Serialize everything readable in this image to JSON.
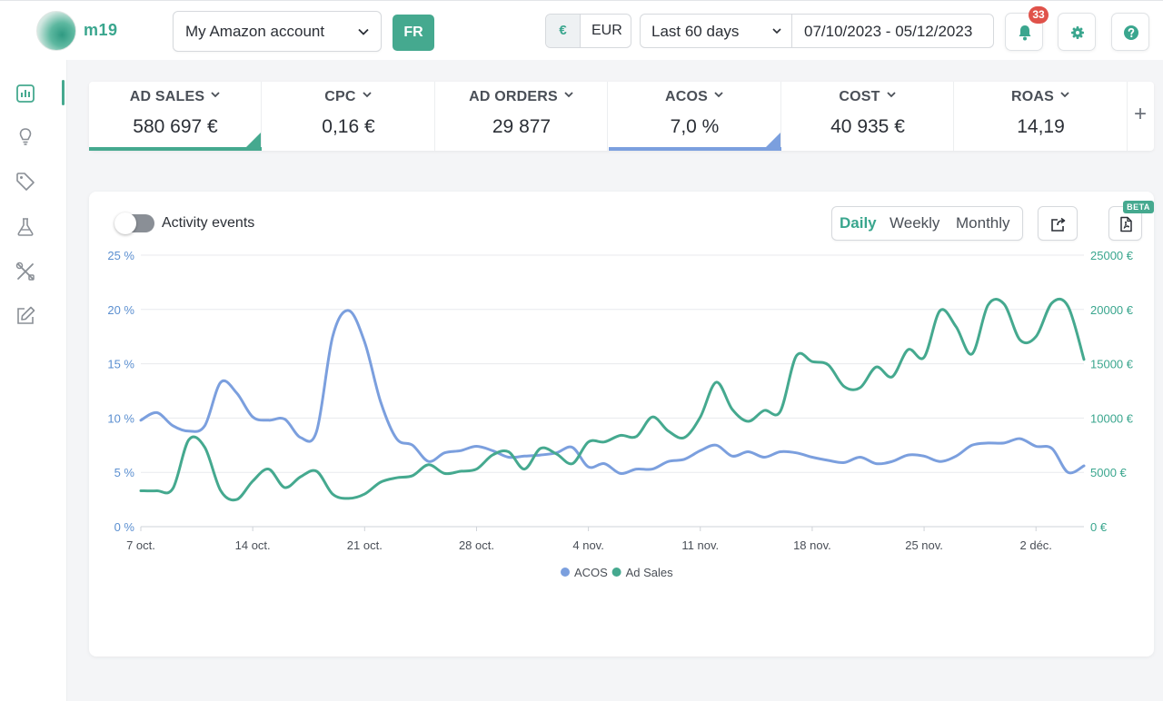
{
  "header": {
    "brand": "m19",
    "account": "My Amazon account",
    "marketplace": "FR",
    "currency_symbol": "€",
    "currency_code": "EUR",
    "period": "Last 60 days",
    "date_range": "07/10/2023 - 05/12/2023",
    "notifications_count": "33",
    "icons": [
      "bell-icon",
      "gear-icon",
      "help-icon"
    ]
  },
  "sidebar": {
    "items": [
      {
        "name": "dashboard",
        "icon": "bar-chart-icon",
        "active": true
      },
      {
        "name": "insights",
        "icon": "lightbulb-icon",
        "active": false
      },
      {
        "name": "products",
        "icon": "tag-icon",
        "active": false
      },
      {
        "name": "experiments",
        "icon": "flask-icon",
        "active": false
      },
      {
        "name": "tools",
        "icon": "tools-icon",
        "active": false
      },
      {
        "name": "edit",
        "icon": "edit-icon",
        "active": false
      }
    ]
  },
  "kpis": [
    {
      "label": "AD SALES",
      "value": "580 697 €",
      "underline": "#45a98f"
    },
    {
      "label": "CPC",
      "value": "0,16 €",
      "underline": ""
    },
    {
      "label": "AD ORDERS",
      "value": "29 877",
      "underline": ""
    },
    {
      "label": "ACOS",
      "value": "7,0 %",
      "underline": "#7b9fde"
    },
    {
      "label": "COST",
      "value": "40 935 €",
      "underline": ""
    },
    {
      "label": "ROAS",
      "value": "14,19",
      "underline": ""
    }
  ],
  "kpi_add": "+",
  "chart_panel": {
    "activity_toggle_label": "Activity events",
    "activity_toggle_on": false,
    "granularity": [
      "Daily",
      "Weekly",
      "Monthly"
    ],
    "granularity_selected": "Daily",
    "beta_label": "BETA"
  },
  "colors": {
    "acos": "#7b9fde",
    "ad_sales": "#45a98f",
    "accent": "#45a98f"
  },
  "chart_data": {
    "type": "line",
    "x_ticks": [
      "7 oct.",
      "14 oct.",
      "21 oct.",
      "28 oct.",
      "4 nov.",
      "11 nov.",
      "18 nov.",
      "25 nov.",
      "2 déc."
    ],
    "x_range": [
      "2023-10-07",
      "2023-12-05"
    ],
    "y_left": {
      "ticks": [
        "0 %",
        "5 %",
        "10 %",
        "15 %",
        "20 %",
        "25 %"
      ],
      "range": [
        0,
        25
      ]
    },
    "y_right": {
      "ticks": [
        "0 €",
        "5000 €",
        "10000 €",
        "15000 €",
        "20000 €",
        "25000 €"
      ],
      "range": [
        0,
        25000
      ]
    },
    "grid": true,
    "legend_position": "bottom-center",
    "series": [
      {
        "name": "ACOS",
        "axis": "left",
        "color": "#7b9fde",
        "values": [
          9.8,
          10.5,
          9.3,
          8.8,
          9.3,
          13.3,
          12.3,
          10.1,
          9.8,
          9.9,
          8.2,
          8.8,
          17.5,
          19.9,
          17.0,
          11.5,
          8.1,
          7.5,
          6.0,
          6.8,
          7.0,
          7.4,
          7.0,
          6.4,
          6.5,
          6.6,
          6.8,
          7.3,
          5.5,
          5.8,
          4.9,
          5.3,
          5.3,
          6.0,
          6.2,
          7.0,
          7.5,
          6.5,
          6.9,
          6.4,
          6.9,
          6.8,
          6.4,
          6.1,
          5.9,
          6.4,
          5.8,
          6.0,
          6.6,
          6.5,
          6.0,
          6.5,
          7.5,
          7.7,
          7.7,
          8.1,
          7.4,
          7.2,
          5.0,
          5.6
        ]
      },
      {
        "name": "Ad Sales",
        "axis": "right",
        "color": "#45a98f",
        "values": [
          3300,
          3300,
          3500,
          8000,
          7300,
          3300,
          2500,
          4200,
          5300,
          3600,
          4600,
          5100,
          3000,
          2600,
          3000,
          4100,
          4500,
          4700,
          5700,
          4900,
          5100,
          5300,
          6600,
          6900,
          5300,
          7200,
          6700,
          5800,
          7800,
          7800,
          8400,
          8300,
          10100,
          8800,
          8200,
          10100,
          13300,
          10800,
          9700,
          10700,
          10600,
          15700,
          15200,
          14900,
          12900,
          12800,
          14700,
          13800,
          16300,
          15600,
          19900,
          18400,
          15900,
          20400,
          20500,
          17200,
          17500,
          20600,
          20300,
          15400
        ]
      }
    ]
  }
}
